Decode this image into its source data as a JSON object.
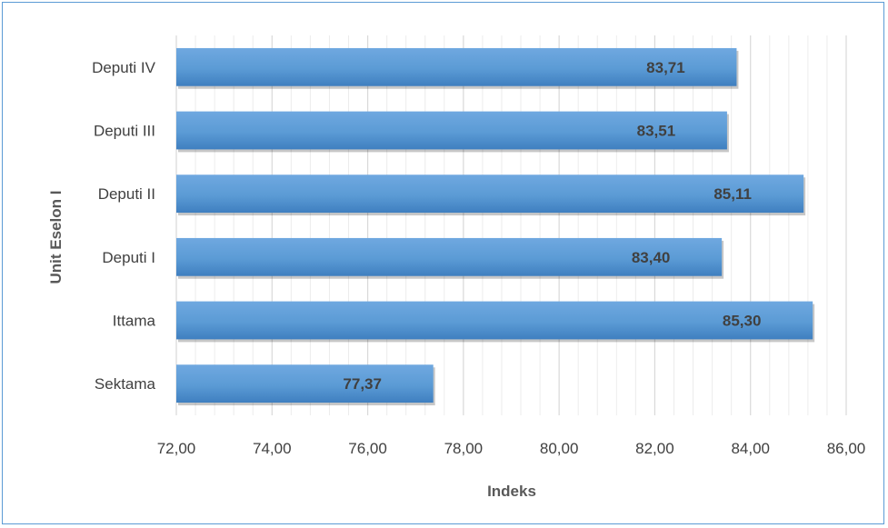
{
  "chart_data": {
    "type": "bar",
    "orientation": "horizontal",
    "categories": [
      "Deputi IV",
      "Deputi III",
      "Deputi II",
      "Deputi I",
      "Ittama",
      "Sektama"
    ],
    "values": [
      83.71,
      83.51,
      85.11,
      83.4,
      85.3,
      77.37
    ],
    "data_labels": [
      "83,71",
      "83,51",
      "85,11",
      "83,40",
      "85,30",
      "77,37"
    ],
    "xlabel": "Indeks",
    "ylabel": "Unit Eselon I",
    "xlim": [
      72,
      86
    ],
    "x_ticks": [
      72,
      74,
      76,
      78,
      80,
      82,
      84,
      86
    ],
    "x_tick_labels": [
      "72,00",
      "74,00",
      "76,00",
      "78,00",
      "80,00",
      "82,00",
      "84,00",
      "86,00"
    ],
    "minor_grid_step": 0.4,
    "grid": true,
    "bar_color": "#5b9bd5",
    "bar_color_light": "#6fa8e0",
    "bar_color_dark": "#3f7fc0",
    "frame_color": "#5b9bd5"
  }
}
